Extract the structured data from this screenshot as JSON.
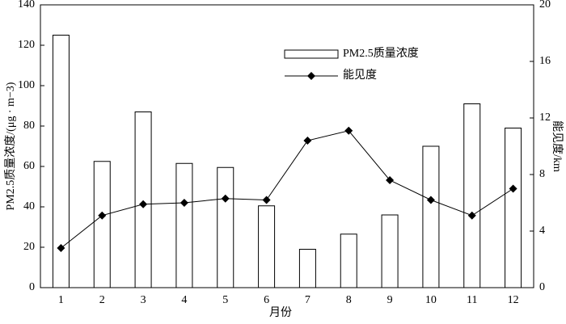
{
  "chart_data": {
    "type": "bar",
    "categories": [
      "1",
      "2",
      "3",
      "4",
      "5",
      "6",
      "7",
      "8",
      "9",
      "10",
      "11",
      "12"
    ],
    "x_label": "月份",
    "y_label": "PM2.5质量浓度/(μg · m−3)",
    "y2_label": "能见度/km",
    "series": [
      {
        "name": "PM2.5质量浓度",
        "type": "bar",
        "color": "#000000",
        "values": [
          125,
          62.5,
          87,
          61.5,
          59.5,
          40.5,
          19,
          26.5,
          36,
          70,
          91,
          79
        ]
      },
      {
        "name": "能见度",
        "type": "line",
        "axis": "y2",
        "color": "#000000",
        "values": [
          2.8,
          5.1,
          5.9,
          6.0,
          6.3,
          6.2,
          10.4,
          11.1,
          7.6,
          6.2,
          5.1,
          7.0
        ]
      }
    ],
    "ylim": [
      0,
      140
    ],
    "yticks": [
      0,
      20,
      40,
      60,
      80,
      100,
      120,
      140
    ],
    "y2lim": [
      0,
      20
    ],
    "y2ticks": [
      0,
      4,
      8,
      12,
      16,
      20
    ]
  }
}
